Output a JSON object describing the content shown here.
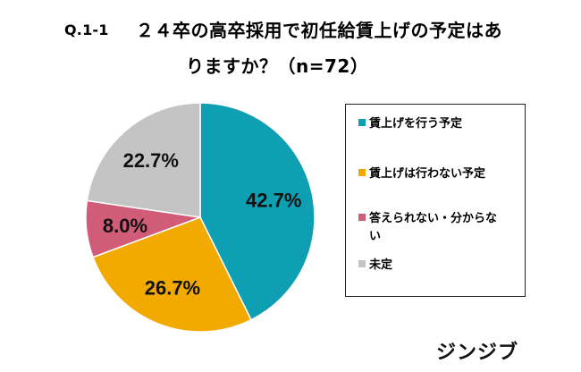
{
  "header": {
    "question_no": "Q.1-1",
    "title_line1": "２４卒の高卒採用で初任給賃上げの予定はあ",
    "title_line2": "りますか？（n=72）"
  },
  "chart_data": {
    "type": "pie",
    "title": "２４卒の高卒採用で初任給賃上げの予定はありますか？（n=72）",
    "n": 72,
    "slices": [
      {
        "label": "賃上げを行う予定",
        "value": 42.7,
        "value_label": "42.7%",
        "color": "#0e9fb2"
      },
      {
        "label": "賃上げは行わない予定",
        "value": 26.7,
        "value_label": "26.7%",
        "color": "#f2a900"
      },
      {
        "label": "答えられない・分からない",
        "value": 8.0,
        "value_label": "8.0%",
        "color": "#d05c78"
      },
      {
        "label": "未定",
        "value": 22.7,
        "value_label": "22.7%",
        "color": "#c4c4c4"
      }
    ],
    "legend_position": "right"
  },
  "legend": {
    "items": [
      {
        "label": "賃上げを行う予定"
      },
      {
        "label_line1": "賃上げは行わない予定"
      },
      {
        "label_line1": "答えられない・分からな",
        "label_line2": "い"
      },
      {
        "label": "未定"
      }
    ]
  },
  "brand": {
    "text": "ジンジブ"
  }
}
